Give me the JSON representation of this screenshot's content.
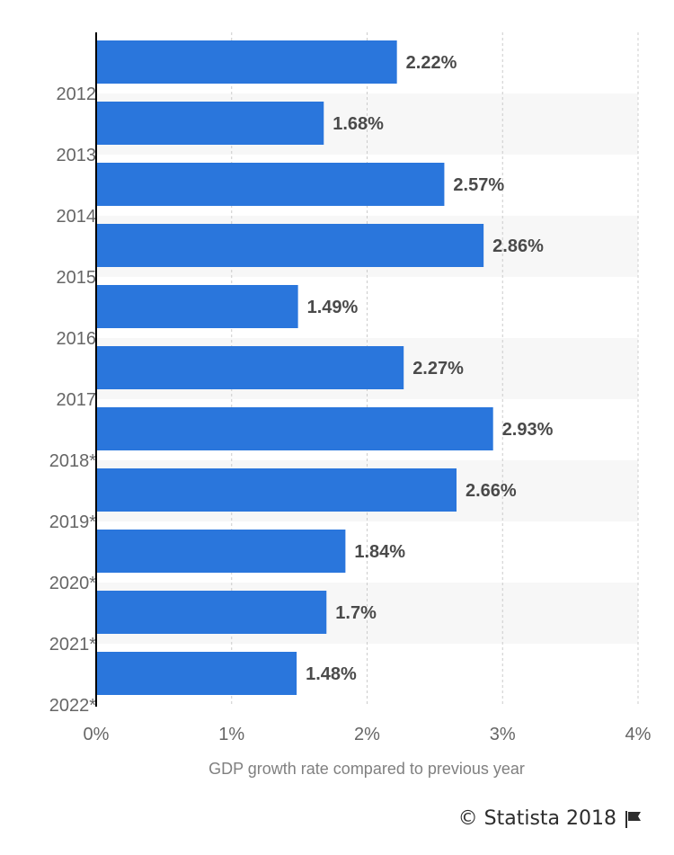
{
  "chart_data": {
    "type": "bar",
    "orientation": "horizontal",
    "categories": [
      "2012",
      "2013",
      "2014",
      "2015",
      "2016",
      "2017",
      "2018*",
      "2019*",
      "2020*",
      "2021*",
      "2022*"
    ],
    "values": [
      2.22,
      1.68,
      2.57,
      2.86,
      1.49,
      2.27,
      2.93,
      2.66,
      1.84,
      1.7,
      1.48
    ],
    "data_labels": [
      "2.22%",
      "1.68%",
      "2.57%",
      "2.86%",
      "1.49%",
      "2.27%",
      "2.93%",
      "2.66%",
      "1.84%",
      "1.7%",
      "1.48%"
    ],
    "xlabel": "GDP growth rate compared to previous year",
    "ylabel": "",
    "xlim": [
      0,
      4
    ],
    "x_ticks": [
      "0%",
      "1%",
      "2%",
      "3%",
      "4%"
    ],
    "grid": true,
    "legend": "none",
    "bar_color": "#2a76dc",
    "band_color": "#f7f7f7",
    "grid_color": "#cccccc",
    "axis_color": "#000000",
    "label_color": "#4a4a4a"
  },
  "footer": {
    "credit": "© Statista 2018",
    "flag_icon": "flag-icon"
  }
}
